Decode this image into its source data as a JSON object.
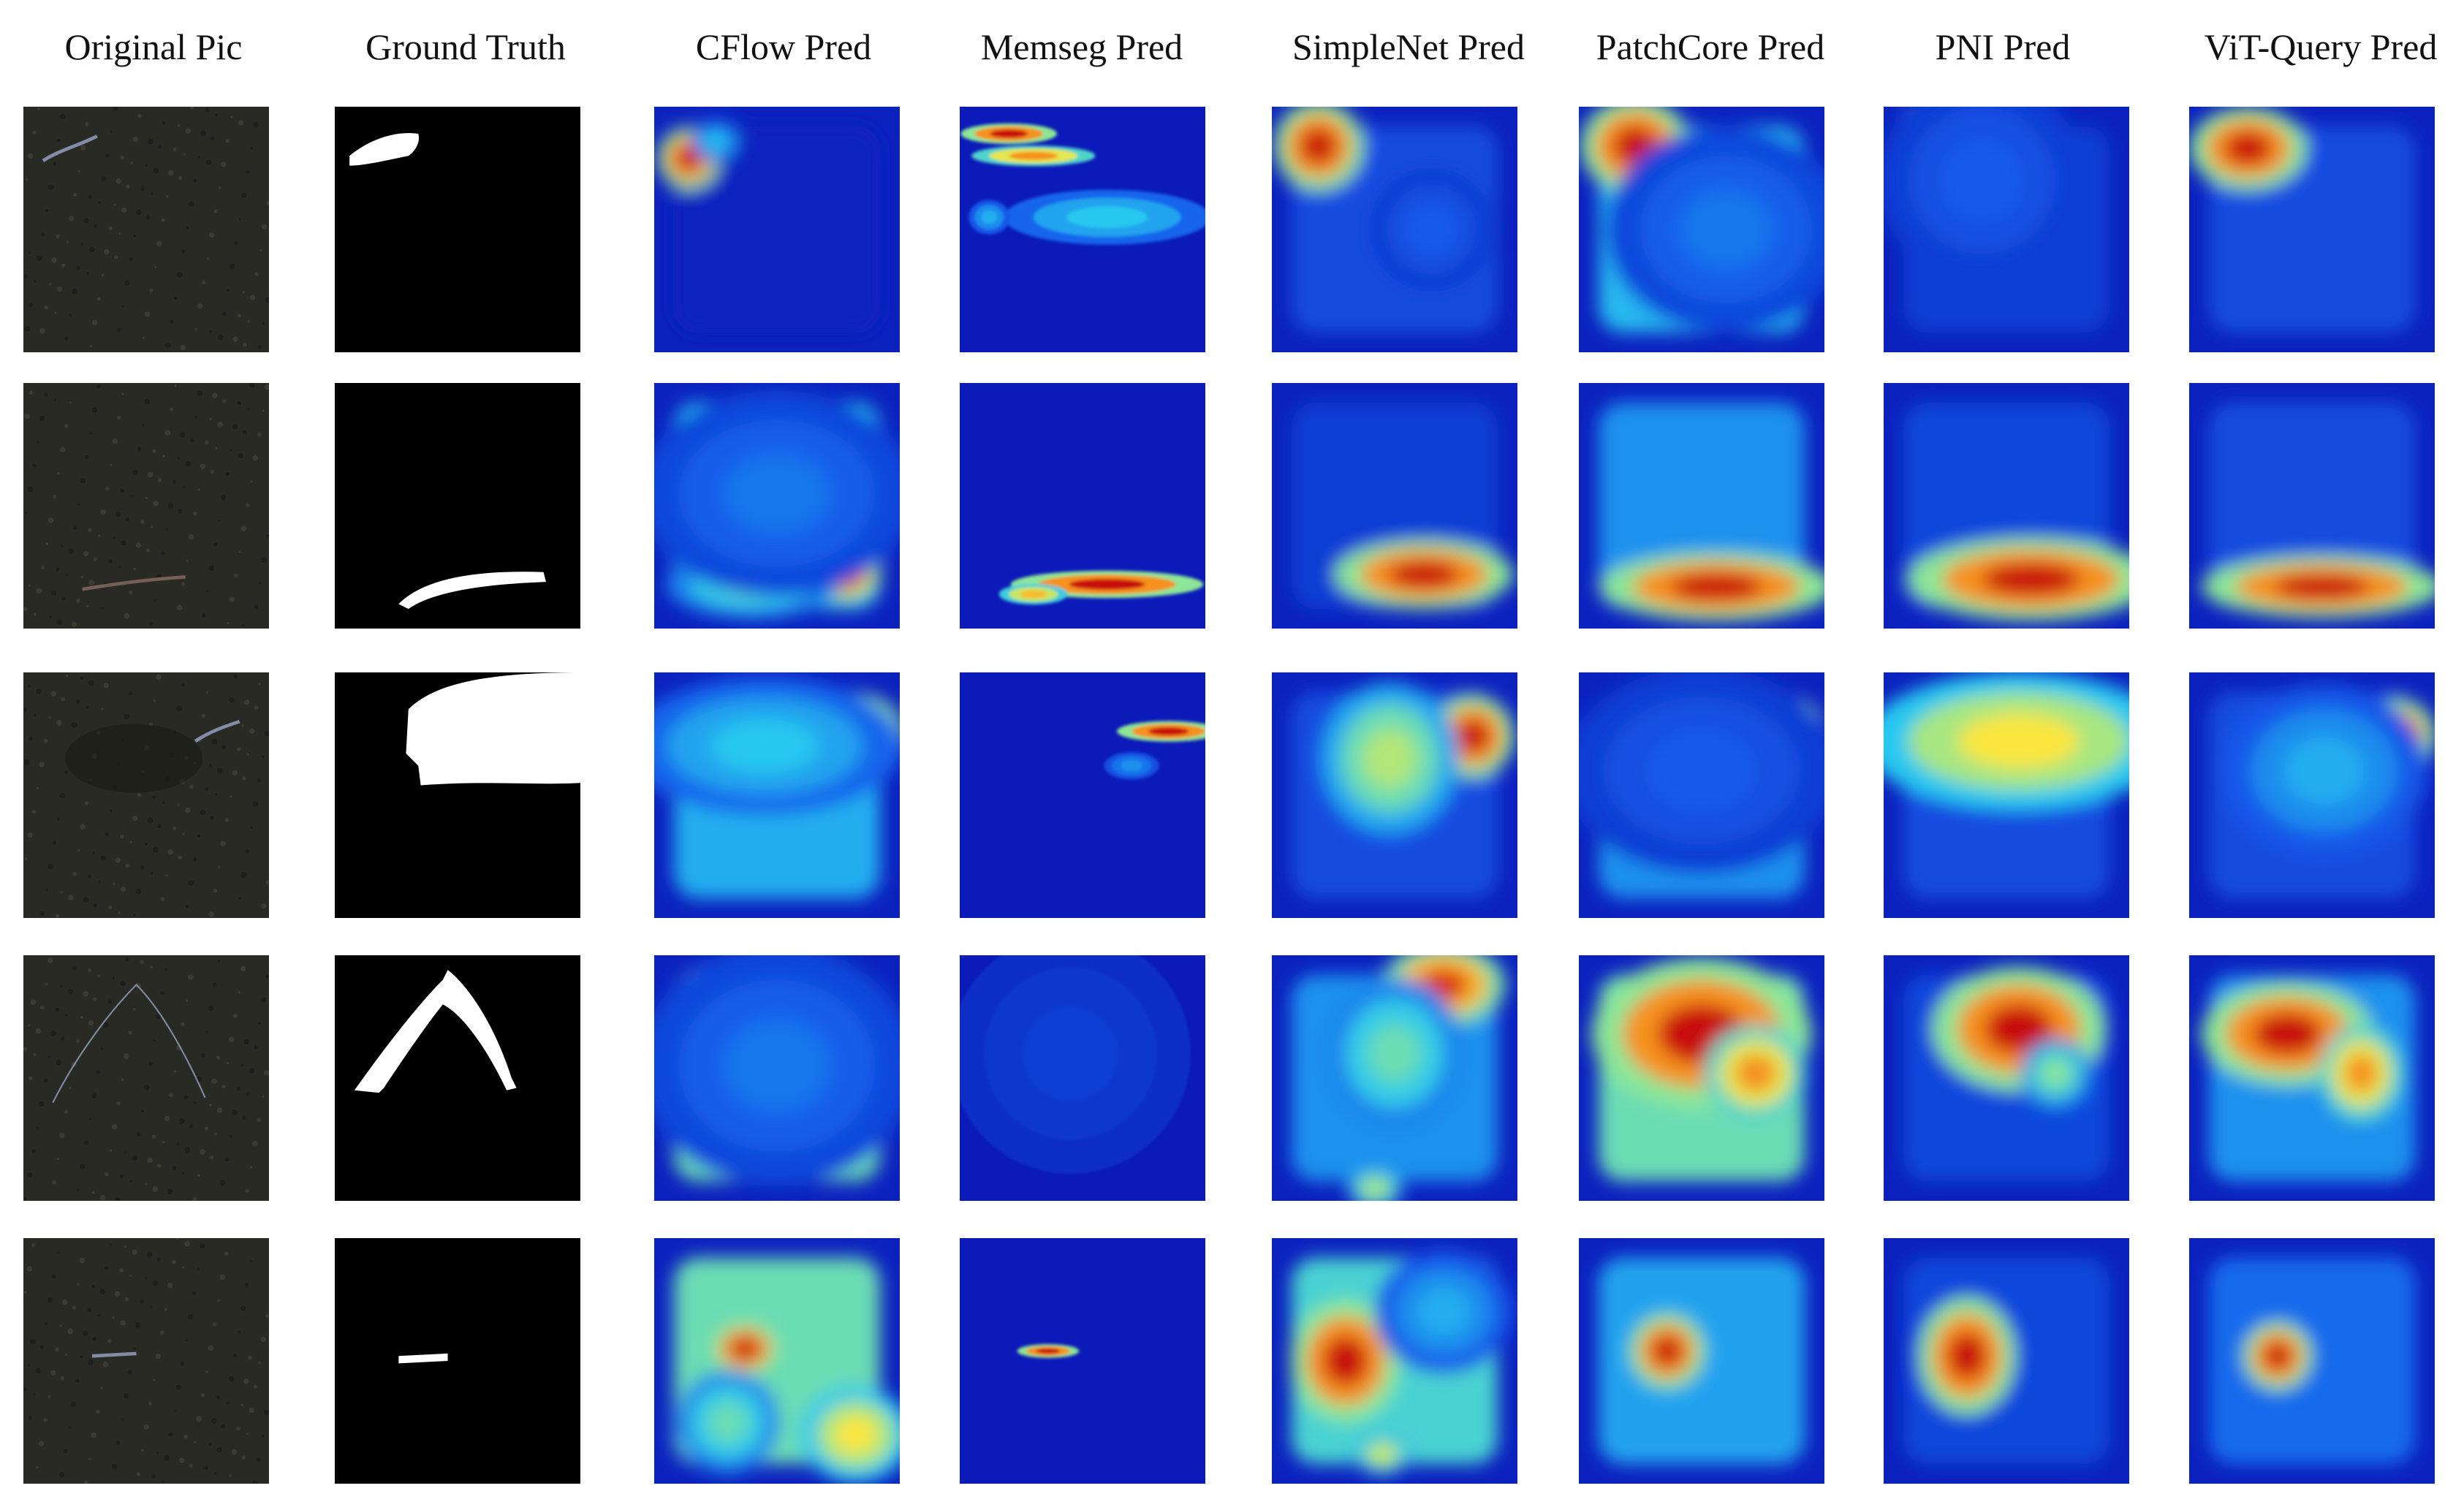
{
  "figure": {
    "headers": [
      "Original Pic",
      "Ground Truth",
      "CFlow Pred",
      "Memseg Pred",
      "SimpleNet Pred",
      "PatchCore Pred",
      "PNI Pred",
      "ViT-Query  Pred"
    ],
    "colors": {
      "heatmap_background": "#0a23c8",
      "heatmap_warm": "#d01010",
      "mask_background": "#000000",
      "mask_foreground": "#ffffff",
      "photo_background": "#2a2a24"
    },
    "rows": [
      {
        "defect": "upper-left scratch"
      },
      {
        "defect": "lower horizontal streak"
      },
      {
        "defect": "upper-right stain"
      },
      {
        "defect": "arch-shaped crack"
      },
      {
        "defect": "small center-left spot"
      }
    ]
  }
}
